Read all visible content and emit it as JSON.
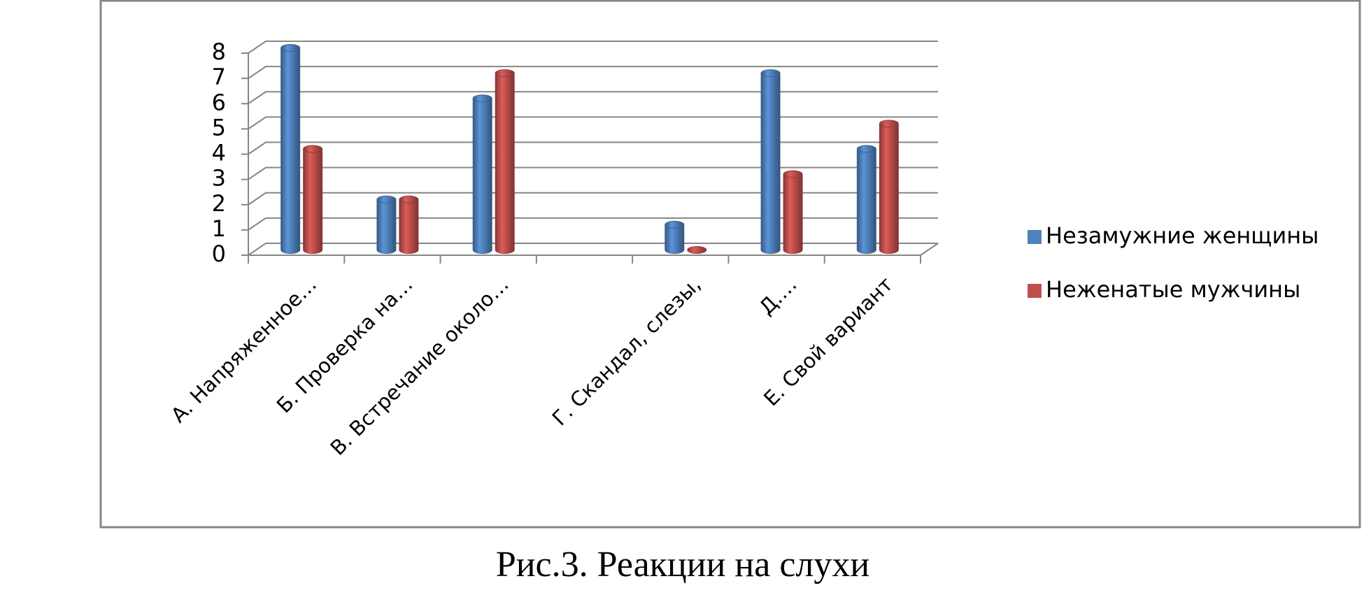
{
  "chart_data": {
    "type": "bar",
    "categories": [
      "А. Напряженное…",
      "Б. Проверка на…",
      "В. Встречание около…",
      null,
      "Г. Скандал, слезы,",
      "Д.…",
      "Е. Свой вариант"
    ],
    "series": [
      {
        "name": "Незамужние женщины",
        "color": "#4f81bd",
        "values": [
          8,
          2,
          6,
          null,
          1,
          7,
          4
        ]
      },
      {
        "name": "Неженатые мужчины",
        "color": "#c0504d",
        "values": [
          4,
          2,
          7,
          null,
          0,
          3,
          5
        ]
      }
    ],
    "ylim": [
      0,
      8
    ],
    "yticks": [
      0,
      1,
      2,
      3,
      4,
      5,
      6,
      7,
      8
    ],
    "grid": true,
    "legend": "right"
  },
  "caption": "Рис.3. Реакции на слухи"
}
